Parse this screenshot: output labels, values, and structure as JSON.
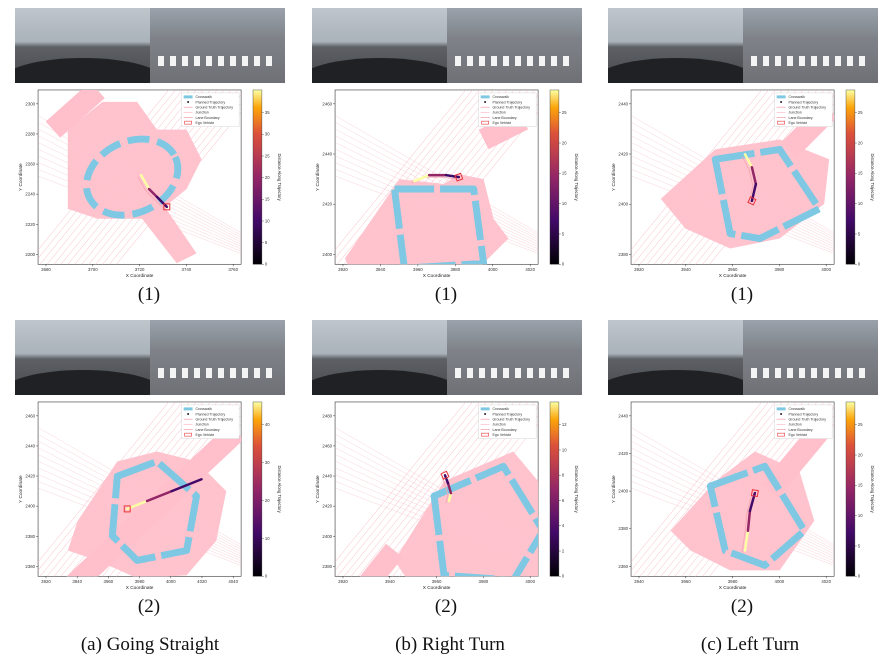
{
  "legend": {
    "crosswalk": "Crosswalk",
    "planned": "Planned Trajectory",
    "ground_truth": "Ground Truth Trajectory",
    "junction": "Junction",
    "lane_boundary": "Lane Boundary",
    "ego": "Ego Vehicle"
  },
  "axis": {
    "xlabel": "X Coordinate",
    "ylabel": "Y Coordinate",
    "cbar_label": "Distance Along Trajectory"
  },
  "colors": {
    "junction": "#ffc0cb",
    "crosswalk": "#7ec8e3",
    "lane": "#f4a6b2",
    "ego": "#e8333a"
  },
  "group_captions": [
    "(a) Going Straight",
    "(b) Right Turn",
    "(c) Left Turn"
  ],
  "panels": [
    {
      "id": "a1",
      "caption": "(1)",
      "chart_data": {
        "type": "line",
        "xticks": [
          3680,
          3700,
          3720,
          3740,
          3760
        ],
        "yticks": [
          2300,
          2280,
          2260,
          2240,
          2220,
          2200
        ],
        "cbar_ticks": [
          0,
          5,
          10,
          15,
          20,
          25,
          30,
          35
        ]
      }
    },
    {
      "id": "b1",
      "caption": "(1)",
      "chart_data": {
        "type": "line",
        "xticks": [
          3920,
          3940,
          3960,
          3980,
          4000,
          4020
        ],
        "yticks": [
          2460,
          2440,
          2420,
          2400
        ],
        "cbar_ticks": [
          0,
          5,
          10,
          15,
          20,
          25
        ]
      }
    },
    {
      "id": "c1",
      "caption": "(1)",
      "chart_data": {
        "type": "line",
        "xticks": [
          3920,
          3940,
          3960,
          3980,
          4000
        ],
        "yticks": [
          2440,
          2420,
          2400,
          2380
        ],
        "cbar_ticks": [
          0,
          5,
          10,
          15,
          20,
          25
        ]
      }
    },
    {
      "id": "a2",
      "caption": "(2)",
      "chart_data": {
        "type": "line",
        "xticks": [
          3920,
          3940,
          3960,
          3980,
          4000,
          4020,
          4040
        ],
        "yticks": [
          2460,
          2440,
          2420,
          2400,
          2380,
          2360
        ],
        "cbar_ticks": [
          0,
          10,
          20,
          30,
          40
        ]
      }
    },
    {
      "id": "b2",
      "caption": "(2)",
      "chart_data": {
        "type": "line",
        "xticks": [
          3920,
          3940,
          3960,
          3980,
          4000
        ],
        "yticks": [
          2480,
          2460,
          2440,
          2420,
          2400,
          2380
        ],
        "cbar_ticks": [
          0,
          2,
          4,
          6,
          8,
          10,
          12
        ]
      }
    },
    {
      "id": "c2",
      "caption": "(2)",
      "chart_data": {
        "type": "line",
        "xticks": [
          3940,
          3960,
          3980,
          4000,
          4020
        ],
        "yticks": [
          2440,
          2420,
          2400,
          2380,
          2360
        ],
        "cbar_ticks": [
          0,
          5,
          10,
          15,
          20,
          25
        ]
      }
    }
  ]
}
